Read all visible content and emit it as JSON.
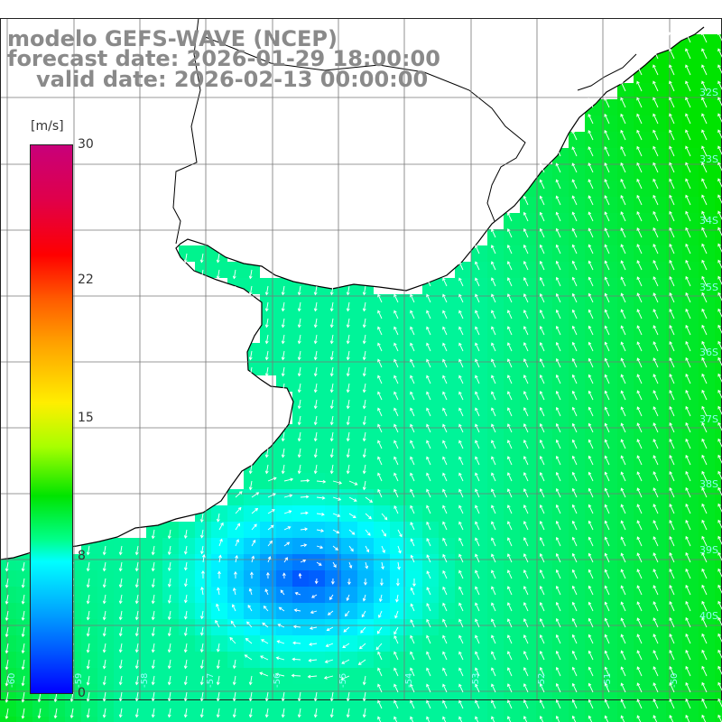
{
  "title": {
    "line1": "modelo GEFS-WAVE (NCEP)",
    "line2": "forecast date: 2026-01-29 18:00:00",
    "line3": "valid date: 2026-02-13 00:00:00"
  },
  "colorbar": {
    "unit": "[m/s]",
    "ticks": [
      "30",
      "22",
      "15",
      "8",
      "0"
    ],
    "tick_values": [
      30,
      22,
      15,
      8,
      0
    ]
  },
  "map": {
    "variable": "wind speed with direction arrows",
    "value_range": [
      0,
      30
    ],
    "ocean_colors": {
      "low": "#0000ff",
      "mid": "#00ffff",
      "high": "#00e400"
    },
    "land_color": "#ffffff",
    "grid": true,
    "lat_labels": [
      "32S",
      "33S",
      "34S",
      "35S",
      "36S",
      "37S",
      "38S",
      "39S",
      "40S"
    ],
    "lon_labels": [
      "-60",
      "-59",
      "-58",
      "-57",
      "-56",
      "-55",
      "-54",
      "-53",
      "-52",
      "-51",
      "-50"
    ]
  }
}
